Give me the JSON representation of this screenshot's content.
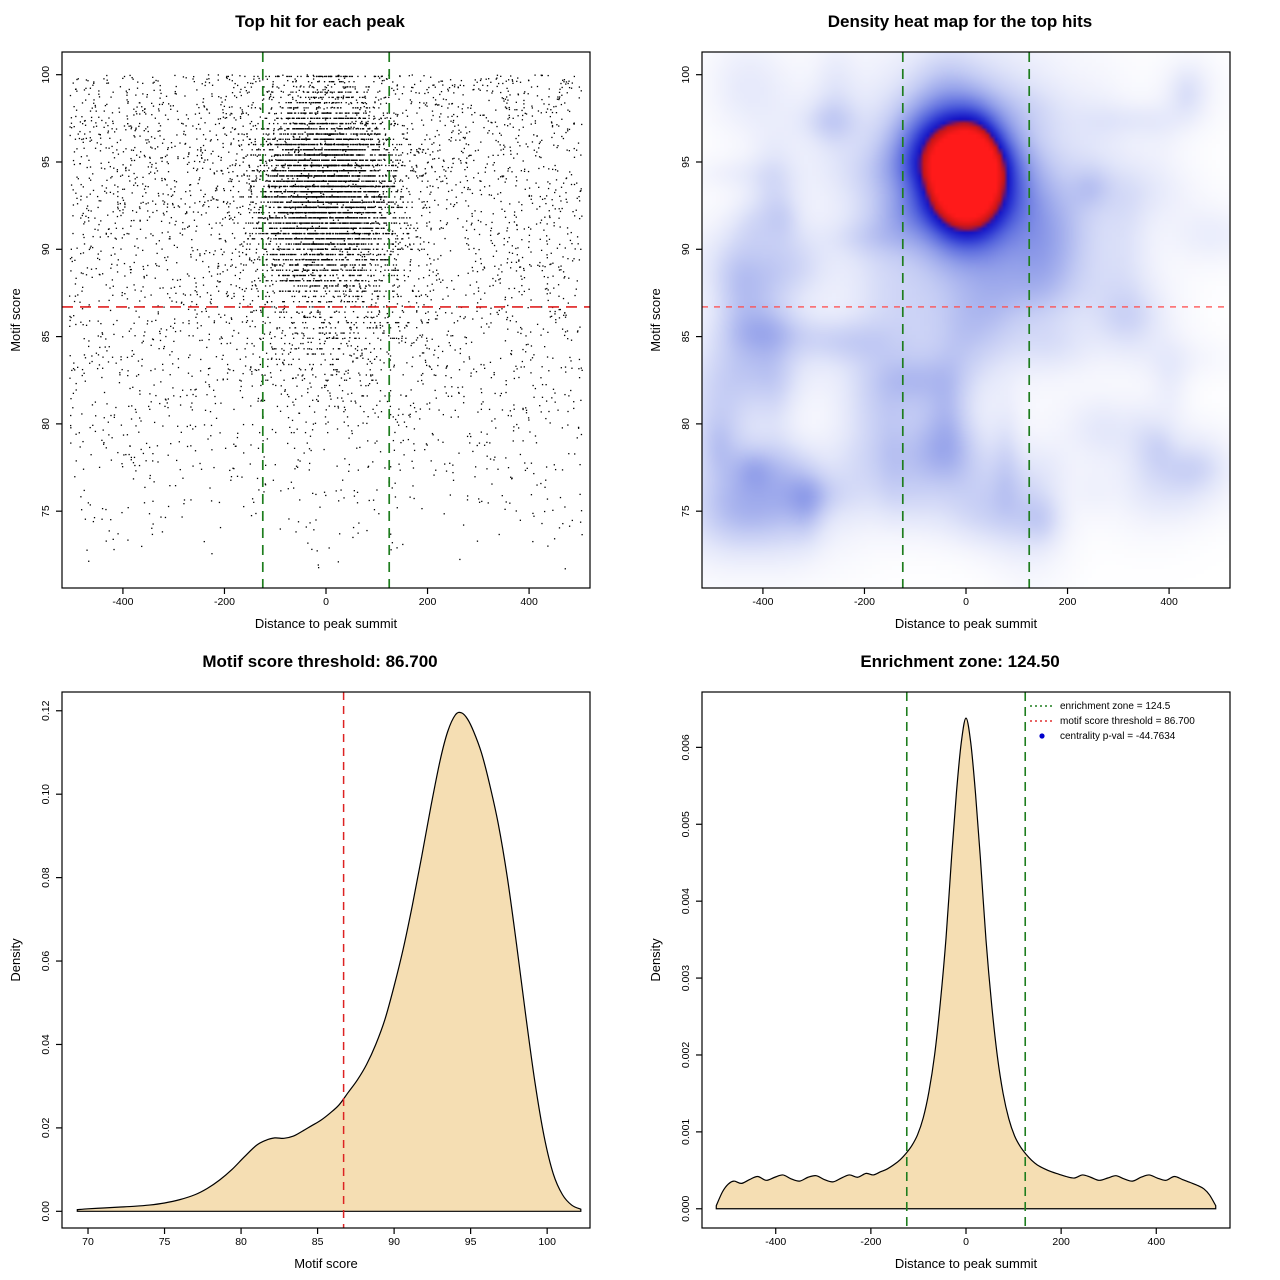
{
  "page": {
    "background": "#ffffff"
  },
  "stats": {
    "motif_score_threshold": "86.700",
    "enrichment_zone": "124.50",
    "centrality_pval": "-44.7634"
  },
  "chart_data": [
    {
      "type": "scatter",
      "title": "Top hit for each peak",
      "xlabel": "Distance to peak summit",
      "ylabel": "Motif score",
      "xlim": [
        -520,
        520
      ],
      "ylim": [
        70.6,
        101.3
      ],
      "xticks": [
        -400,
        -200,
        0,
        200,
        400
      ],
      "xticklabels": [
        "-400",
        "-200",
        "0",
        "200",
        "400"
      ],
      "yticks": [
        75,
        80,
        85,
        90,
        95,
        100
      ],
      "yticklabels": [
        "75",
        "80",
        "85",
        "90",
        "95",
        "100"
      ],
      "point_color": "#000000",
      "point_size": 1.3,
      "seed": 42,
      "clusters": [
        {
          "kind": "gaussian",
          "n": 5000,
          "x_mean": 0,
          "x_sd": 68,
          "y_mean": 93.6,
          "y_sd": 2.7,
          "y_min": 84,
          "y_max": 100,
          "quantize_y": 0.3
        },
        {
          "kind": "gaussian",
          "n": 900,
          "x_mean": 0,
          "x_sd": 90,
          "y_mean": 88,
          "y_sd": 4,
          "y_min": 76,
          "y_max": 100,
          "quantize_y": 0.3
        },
        {
          "kind": "background",
          "n": 3600,
          "x_min": -505,
          "x_max": 505,
          "y_min": 71.5,
          "y_max": 100,
          "y_pow": 0.55
        }
      ],
      "hline": {
        "y": 86.7,
        "color": "#e02020",
        "dash": [
          11,
          7
        ],
        "width": 1.6
      },
      "vlines": {
        "x": [
          -124.5,
          124.5
        ],
        "color": "#1e7d1e",
        "dash": [
          10,
          7
        ],
        "width": 1.7
      }
    },
    {
      "type": "heatmap",
      "title": "Density heat map for the top hits",
      "xlabel": "Distance to peak summit",
      "ylabel": "Motif score",
      "xlim": [
        -520,
        520
      ],
      "ylim": [
        70.6,
        101.3
      ],
      "xticks": [
        -400,
        -200,
        0,
        200,
        400
      ],
      "xticklabels": [
        "-400",
        "-200",
        "0",
        "200",
        "400"
      ],
      "yticks": [
        75,
        80,
        85,
        90,
        95,
        100
      ],
      "yticklabels": [
        "75",
        "80",
        "85",
        "90",
        "95",
        "100"
      ],
      "kernels": [
        {
          "x": 0,
          "y": 94.2,
          "sx": 52,
          "sy": 2.2,
          "a": 1.05
        },
        {
          "x": 0,
          "y": 93.6,
          "sx": 115,
          "sy": 4.2,
          "a": 0.3
        },
        {
          "x": 0,
          "y": 92.5,
          "sx": 200,
          "sy": 7.5,
          "a": 0.1
        }
      ],
      "noise": {
        "seed": 11,
        "count": 110,
        "amp_min": 0.03,
        "amp_max": 0.1,
        "sx_min": 22,
        "sx_max": 80,
        "sy_min": 0.7,
        "sy_max": 2.6,
        "y_min": 74.5,
        "y_max": 99.5,
        "y_pow": 1.3
      },
      "stops": [
        [
          0.0,
          "#ffffff"
        ],
        [
          0.05,
          "#f4f5fd"
        ],
        [
          0.12,
          "#e2e6fa"
        ],
        [
          0.22,
          "#c3cbf4"
        ],
        [
          0.35,
          "#94a1ea"
        ],
        [
          0.5,
          "#5a6ade"
        ],
        [
          0.63,
          "#2b36d2"
        ],
        [
          0.74,
          "#1512c4"
        ],
        [
          0.83,
          "#c41616"
        ],
        [
          1.0,
          "#ff1a1a"
        ]
      ],
      "hline": {
        "y": 86.7,
        "color": "#ff4d4d",
        "dash": [
          6,
          6
        ],
        "width": 1.3
      },
      "vlines": {
        "x": [
          -124.5,
          124.5
        ],
        "color": "#1e7d1e",
        "dash": [
          10,
          7
        ],
        "width": 1.7
      }
    },
    {
      "type": "area",
      "title": "Motif score threshold: 86.700",
      "xlabel": "Motif score",
      "ylabel": "Density",
      "xlim": [
        68.3,
        102.8
      ],
      "ylim": [
        -0.004,
        0.1245
      ],
      "xticks": [
        70,
        75,
        80,
        85,
        90,
        95,
        100
      ],
      "xticklabels": [
        "70",
        "75",
        "80",
        "85",
        "90",
        "95",
        "100"
      ],
      "yticks": [
        0.0,
        0.02,
        0.04,
        0.06,
        0.08,
        0.1,
        0.12
      ],
      "yticklabels": [
        "0.00",
        "0.02",
        "0.04",
        "0.06",
        "0.08",
        "0.10",
        "0.12"
      ],
      "fill_color": "#f5deb3",
      "line_color": "#000000",
      "curve": {
        "x": [
          69.3,
          70,
          71,
          72,
          73,
          74,
          75,
          76,
          77,
          77.8,
          78.6,
          79.4,
          80.2,
          81,
          81.6,
          82.2,
          82.8,
          83.4,
          84,
          84.6,
          85.2,
          85.8,
          86.4,
          87,
          87.6,
          88.2,
          88.8,
          89.4,
          90,
          90.6,
          91.2,
          91.8,
          92.4,
          93,
          93.5,
          94,
          94.4,
          94.8,
          95.2,
          95.7,
          96.2,
          96.8,
          97.4,
          98,
          98.6,
          99.2,
          99.8,
          100.4,
          101,
          101.6,
          102.2
        ],
        "y": [
          0.0004,
          0.0006,
          0.0008,
          0.001,
          0.0012,
          0.0015,
          0.002,
          0.0028,
          0.004,
          0.0055,
          0.0075,
          0.01,
          0.013,
          0.0158,
          0.017,
          0.0176,
          0.0175,
          0.018,
          0.0192,
          0.0205,
          0.0218,
          0.0235,
          0.0255,
          0.0285,
          0.0315,
          0.0352,
          0.04,
          0.046,
          0.054,
          0.063,
          0.0735,
          0.085,
          0.097,
          0.108,
          0.115,
          0.119,
          0.1195,
          0.118,
          0.115,
          0.11,
          0.103,
          0.093,
          0.08,
          0.064,
          0.047,
          0.031,
          0.018,
          0.009,
          0.004,
          0.0015,
          0.0005
        ]
      },
      "vlines": {
        "x": [
          86.7
        ],
        "color": "#dd2222",
        "dash": [
          8,
          6
        ],
        "width": 1.5
      }
    },
    {
      "type": "area",
      "title": "Enrichment zone: 124.50",
      "xlabel": "Distance to peak summit",
      "ylabel": "Density",
      "xlim": [
        -555,
        555
      ],
      "ylim": [
        -0.00025,
        0.00672
      ],
      "xticks": [
        -400,
        -200,
        0,
        200,
        400
      ],
      "xticklabels": [
        "-400",
        "-200",
        "0",
        "200",
        "400"
      ],
      "yticks": [
        0.0,
        0.001,
        0.002,
        0.003,
        0.004,
        0.005,
        0.006
      ],
      "yticklabels": [
        "0.000",
        "0.001",
        "0.002",
        "0.003",
        "0.004",
        "0.005",
        "0.006"
      ],
      "fill_color": "#f5deb3",
      "line_color": "#000000",
      "curve": {
        "x": [
          -525,
          -512,
          -500,
          -488,
          -472,
          -455,
          -438,
          -420,
          -402,
          -385,
          -368,
          -350,
          -332,
          -315,
          -298,
          -280,
          -262,
          -245,
          -228,
          -210,
          -195,
          -180,
          -165,
          -150,
          -138,
          -126,
          -114,
          -102,
          -90,
          -78,
          -66,
          -54,
          -42,
          -30,
          -20,
          -10,
          0,
          10,
          20,
          30,
          42,
          54,
          66,
          78,
          90,
          102,
          114,
          126,
          138,
          150,
          165,
          180,
          195,
          210,
          228,
          245,
          262,
          280,
          298,
          315,
          332,
          350,
          368,
          385,
          402,
          420,
          438,
          455,
          472,
          488,
          500,
          512,
          525
        ],
        "y": [
          4e-05,
          0.00022,
          0.00032,
          0.00036,
          0.00033,
          0.00038,
          0.00042,
          0.00037,
          0.00041,
          0.00044,
          0.00039,
          0.00036,
          0.00041,
          0.00043,
          0.00038,
          0.00035,
          0.0004,
          0.00044,
          0.00041,
          0.00046,
          0.00044,
          0.00048,
          0.00052,
          0.00058,
          0.00064,
          0.00072,
          0.00082,
          0.00096,
          0.00118,
          0.00152,
          0.002,
          0.00268,
          0.00352,
          0.0046,
          0.00542,
          0.00606,
          0.00638,
          0.00606,
          0.0054,
          0.00458,
          0.0035,
          0.00265,
          0.00198,
          0.0015,
          0.00117,
          0.00095,
          0.00081,
          0.00071,
          0.00063,
          0.00057,
          0.00052,
          0.00048,
          0.00045,
          0.00042,
          0.0004,
          0.00044,
          0.00041,
          0.00037,
          0.0004,
          0.00043,
          0.00039,
          0.00036,
          0.00041,
          0.00044,
          0.0004,
          0.00037,
          0.00042,
          0.00038,
          0.00034,
          0.0003,
          0.00026,
          0.00018,
          4e-05
        ]
      },
      "vlines": {
        "x": [
          -124.5,
          124.5
        ],
        "color": "#1e7d1e",
        "dash": [
          9,
          6
        ],
        "width": 1.6
      },
      "legend": [
        {
          "label": "enrichment zone = 124.5",
          "color": "#1e7d1e",
          "type": "dashed-line"
        },
        {
          "label": "motif score threshold = 86.700",
          "color": "#e03030",
          "type": "dashed-line"
        },
        {
          "label": "centrality p-val = -44.7634",
          "color": "#0000cc",
          "type": "point"
        }
      ]
    }
  ]
}
